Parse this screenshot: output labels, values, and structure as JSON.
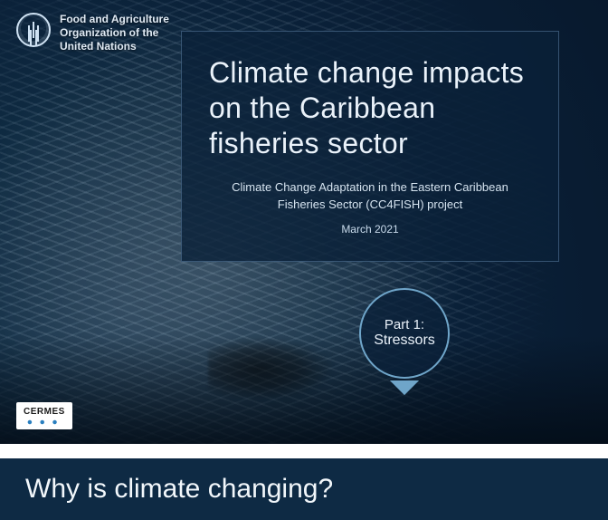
{
  "colors": {
    "deep_navy": "#0a2038",
    "panel_overlay": "rgba(10,32,56,0.80)",
    "text_light": "#eaf2fa",
    "ring_border": "#6fa5c9",
    "question_bg": "#0e2a44",
    "page_bg": "#ffffff"
  },
  "header": {
    "org_line1": "Food and Agriculture",
    "org_line2": "Organization of the",
    "org_line3": "United Nations",
    "logo_name": "fao-logo"
  },
  "title_panel": {
    "title": "Climate change impacts on the Caribbean fisheries sector",
    "subtitle": "Climate Change Adaptation in the Eastern Caribbean Fisheries Sector (CC4FISH) project",
    "date": "March 2021",
    "title_fontsize_pt": 24,
    "subtitle_fontsize_pt": 10,
    "font_weight": 300
  },
  "part_badge": {
    "line1": "Part 1:",
    "line2": "Stressors",
    "shape": "circle-with-down-triangle",
    "border_color": "#6fa5c9",
    "fill_color": "rgba(10,32,56,0.78)"
  },
  "partner_logo": {
    "text": "CERMES"
  },
  "question_bar": {
    "text": "Why is climate changing?",
    "bg_color": "#0e2a44",
    "font_weight": 300,
    "fontsize_pt": 22
  },
  "background": {
    "description": "underwater-fish-school-with-divers",
    "dominant_colors": [
      "#0a2038",
      "#1e3a52",
      "#4f7893"
    ]
  }
}
